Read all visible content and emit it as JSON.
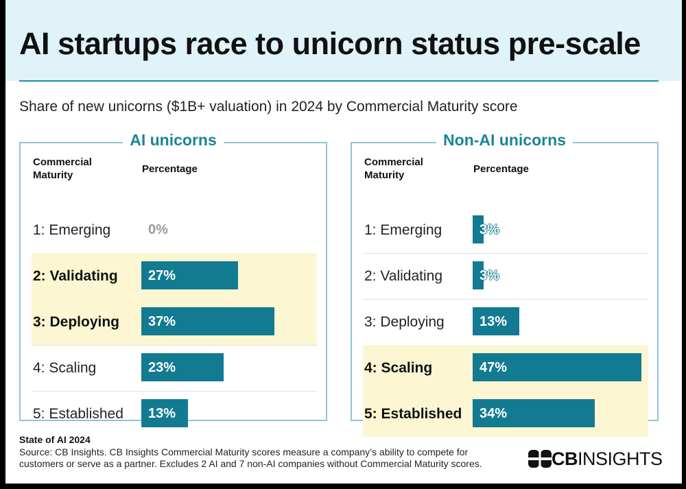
{
  "title": "AI startups race to unicorn status pre-scale",
  "subtitle": "Share of new unicorns ($1B+ valuation) in 2024 by Commercial Maturity score",
  "column_headers": {
    "maturity_line1": "Commercial",
    "maturity_line2": "Maturity",
    "percentage": "Percentage"
  },
  "chart_data": [
    {
      "type": "bar",
      "title": "AI unicorns",
      "categories": [
        "1: Emerging",
        "2: Validating",
        "3: Deploying",
        "4: Scaling",
        "5: Established"
      ],
      "values": [
        0,
        27,
        37,
        23,
        13
      ],
      "value_labels": [
        "0%",
        "27%",
        "37%",
        "23%",
        "13%"
      ],
      "highlighted": [
        "2: Validating",
        "3: Deploying"
      ],
      "bar_color": "#127b91",
      "highlight_color": "#fcf7d2"
    },
    {
      "type": "bar",
      "title": "Non-AI unicorns",
      "categories": [
        "1: Emerging",
        "2: Validating",
        "3: Deploying",
        "4: Scaling",
        "5: Established"
      ],
      "values": [
        3,
        3,
        13,
        47,
        34
      ],
      "value_labels": [
        "3%",
        "3%",
        "13%",
        "47%",
        "34%"
      ],
      "highlighted": [
        "4: Scaling",
        "5: Established"
      ],
      "bar_color": "#127b91",
      "highlight_color": "#fcf7d2"
    }
  ],
  "footer": {
    "title": "State of AI 2024",
    "source": "Source: CB Insights. CB Insights Commercial Maturity scores measure a company’s ability to compete for customers or serve as a partner. Excludes 2 AI and 7 non-AI companies without Commercial Maturity scores."
  },
  "logo": {
    "part1": "CB",
    "part2": "INSIGHTS",
    "color": "#111111"
  },
  "colors": {
    "header_bg": "#dff3f9",
    "accent": "#1a8596",
    "panel_border": "#8fc6d6"
  }
}
